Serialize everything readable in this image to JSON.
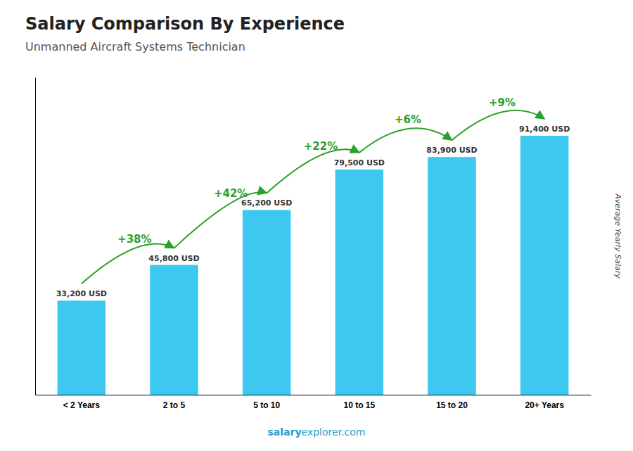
{
  "chart_data": {
    "type": "bar",
    "title": "Salary Comparison By Experience",
    "subtitle": "Unmanned Aircraft Systems Technician",
    "y_label": "Average Yearly Salary",
    "categories": [
      "< 2 Years",
      "2 to 5",
      "5 to 10",
      "10 to 15",
      "15 to 20",
      "20+ Years"
    ],
    "values": [
      33200,
      45800,
      65200,
      79500,
      83900,
      91400
    ],
    "value_labels": [
      "33,200 USD",
      "45,800 USD",
      "65,200 USD",
      "79,500 USD",
      "83,900 USD",
      "91,400 USD"
    ],
    "data_labels": true,
    "color": "#3dc8f0",
    "ylim": [
      0,
      112000
    ],
    "tick_labels": "x",
    "grid": false,
    "annotations": [
      "+38%",
      "+42%",
      "+22%",
      "+6%",
      "+9%"
    ],
    "footer": [
      "salary",
      "explorer.com"
    ]
  }
}
